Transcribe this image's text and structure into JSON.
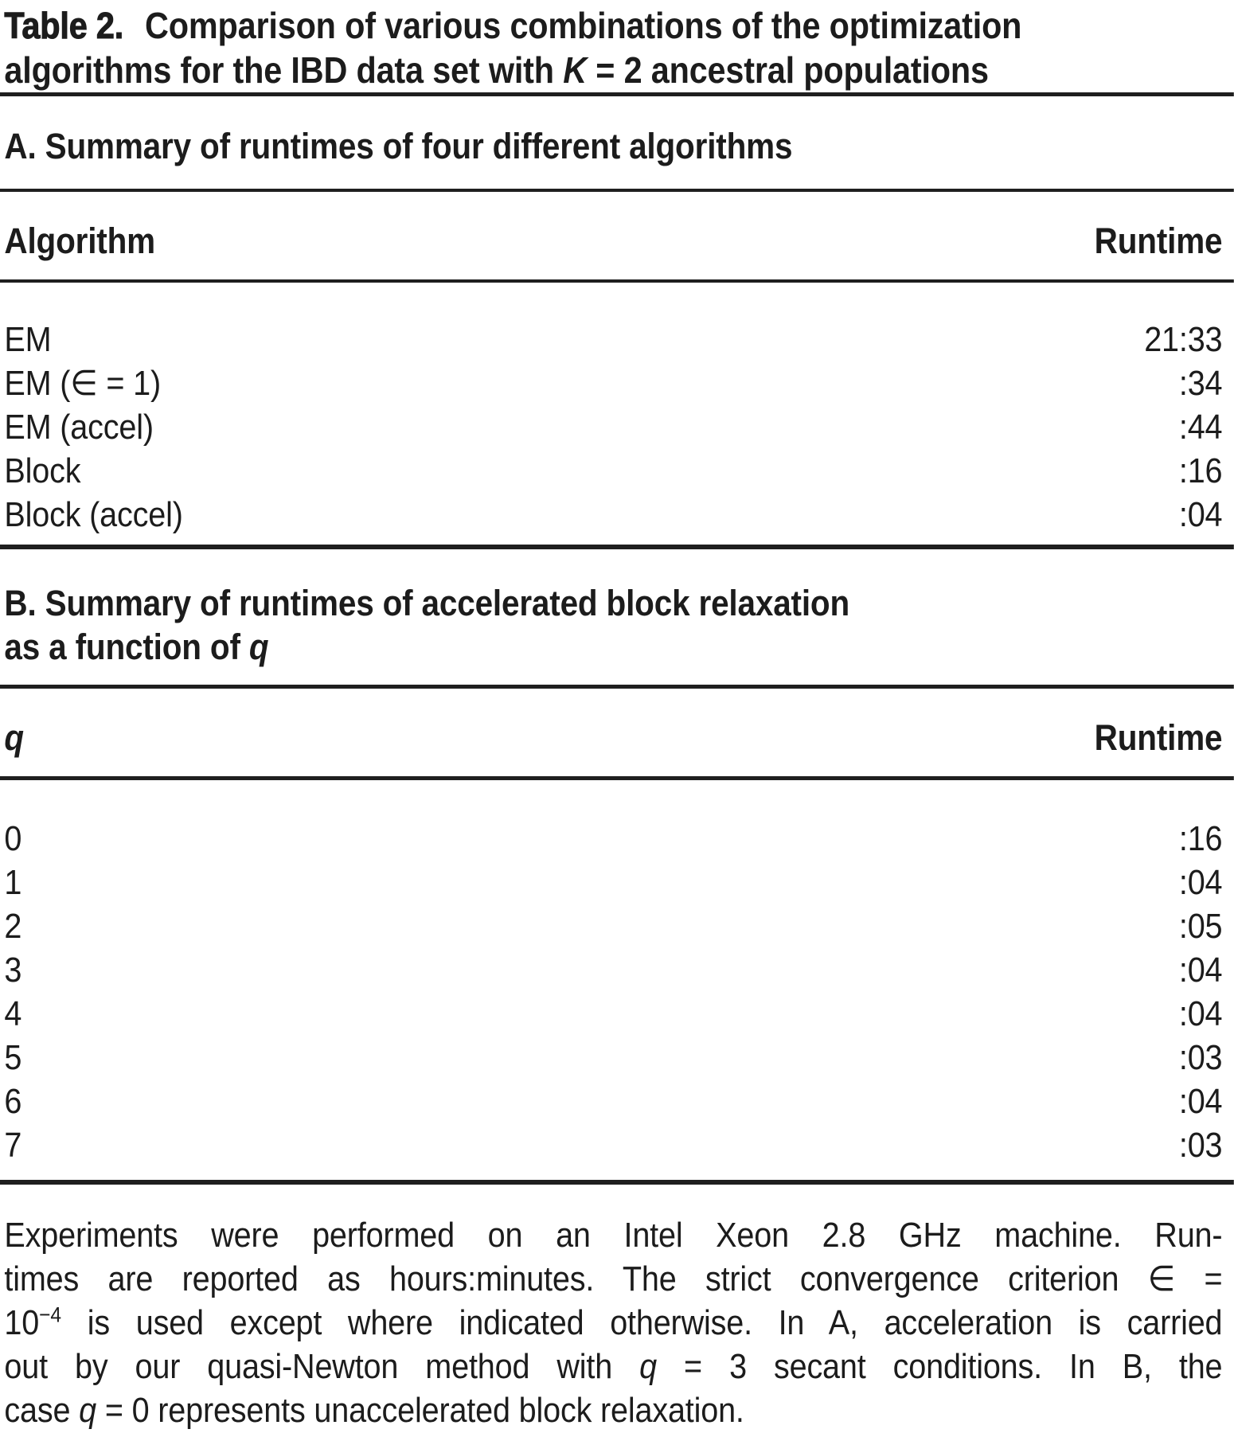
{
  "title": {
    "label": "Table 2.",
    "text_segments": [
      {
        "t": "Comparison of various combinations of the optimization"
      },
      {
        "style": "br"
      },
      {
        "t": "algorithms for the IBD data set with "
      },
      {
        "t": "K",
        "style": "italic"
      },
      {
        "t": " = 2 ancestral populations"
      }
    ]
  },
  "section_a": {
    "heading": "A. Summary of runtimes of four different algorithms",
    "columns": [
      "Algorithm",
      "Runtime"
    ],
    "rows": [
      {
        "label": "EM",
        "runtime": "21:33"
      },
      {
        "label": "EM (∈ = 1)",
        "runtime": ":34"
      },
      {
        "label": "EM (accel)",
        "runtime": ":44"
      },
      {
        "label": "Block",
        "runtime": ":16"
      },
      {
        "label": "Block (accel)",
        "runtime": ":04"
      }
    ]
  },
  "section_b": {
    "heading_segments": [
      {
        "t": "B. Summary of runtimes of accelerated block relaxation"
      },
      {
        "style": "br"
      },
      {
        "t": "as a function of "
      },
      {
        "t": "q",
        "style": "italic"
      }
    ],
    "columns": [
      "q",
      "Runtime"
    ],
    "rows": [
      {
        "label": "0",
        "runtime": ":16"
      },
      {
        "label": "1",
        "runtime": ":04"
      },
      {
        "label": "2",
        "runtime": ":05"
      },
      {
        "label": "3",
        "runtime": ":04"
      },
      {
        "label": "4",
        "runtime": ":04"
      },
      {
        "label": "5",
        "runtime": ":03"
      },
      {
        "label": "6",
        "runtime": ":04"
      },
      {
        "label": "7",
        "runtime": ":03"
      }
    ]
  },
  "footnote_lines": [
    [
      {
        "t": "Experiments were performed on an Intel Xeon 2.8 GHz machine. Run-"
      }
    ],
    [
      {
        "t": "times are reported as hours:minutes. The strict convergence criterion ∈ ="
      }
    ],
    [
      {
        "t": "10"
      },
      {
        "t": "−4",
        "style": "sup"
      },
      {
        "t": " is used except where indicated otherwise. In A, acceleration is carried"
      }
    ],
    [
      {
        "t": "out by our quasi-Newton method with "
      },
      {
        "t": "q",
        "style": "italic"
      },
      {
        "t": " = 3 secant conditions. In B, the"
      }
    ],
    [
      {
        "t": "case "
      },
      {
        "t": "q",
        "style": "italic"
      },
      {
        "t": " = 0 represents unaccelerated block relaxation."
      }
    ]
  ],
  "colors": {
    "text": "#1c1c1c",
    "rule": "#1f1f1f",
    "background": "#ffffff"
  }
}
